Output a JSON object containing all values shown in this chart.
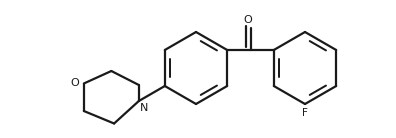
{
  "bg_color": "#ffffff",
  "line_color": "#1a1a1a",
  "line_width": 1.6,
  "fig_width": 3.96,
  "fig_height": 1.38,
  "dpi": 100,
  "xlim": [
    0,
    396
  ],
  "ylim": [
    0,
    138
  ]
}
